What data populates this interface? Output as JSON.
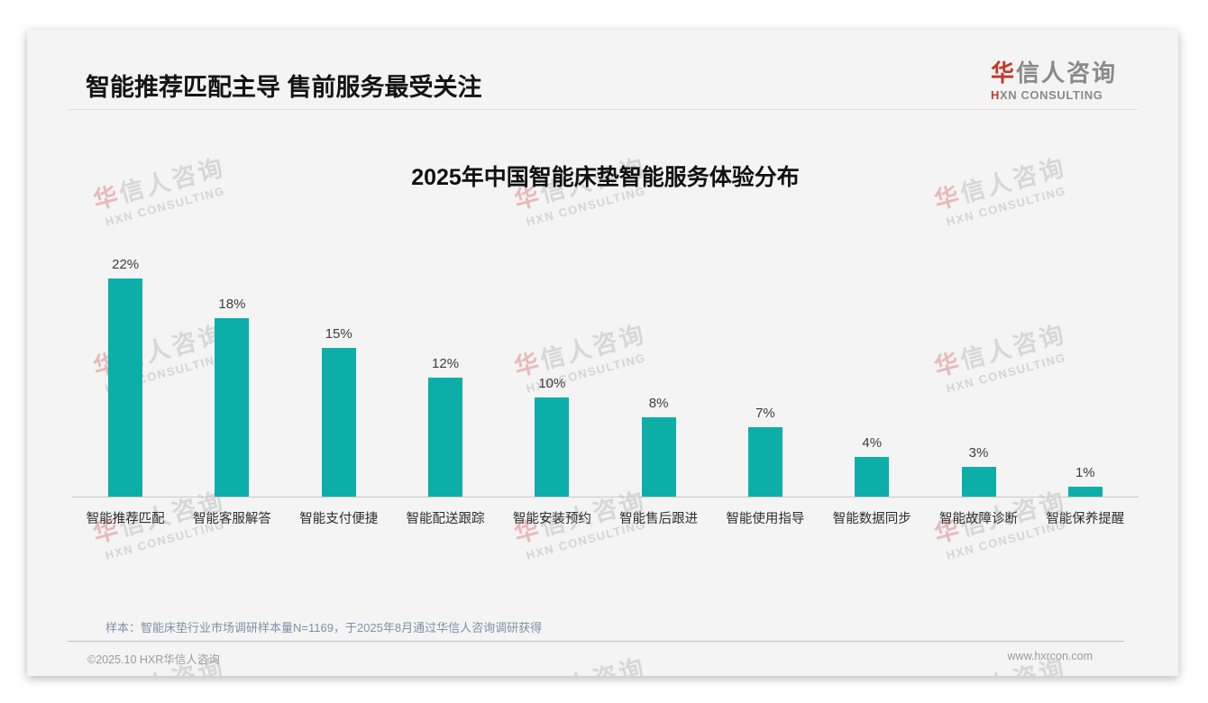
{
  "header": {
    "title": "智能推荐匹配主导 售前服务最受关注",
    "logo": {
      "cn_accent": "华",
      "cn_rest": "信人咨询",
      "en_accent": "H",
      "en_rest": "XN CONSULTING"
    }
  },
  "watermark": {
    "cn_accent": "华",
    "cn_rest": "信人咨询",
    "en": "HXN CONSULTING"
  },
  "chart_data": {
    "type": "bar",
    "title": "2025年中国智能床垫智能服务体验分布",
    "categories": [
      "智能推荐匹配",
      "智能客服解答",
      "智能支付便捷",
      "智能配送跟踪",
      "智能安装预约",
      "智能售后跟进",
      "智能使用指导",
      "智能数据同步",
      "智能故障诊断",
      "智能保养提醒"
    ],
    "values": [
      22,
      18,
      15,
      12,
      10,
      8,
      7,
      4,
      3,
      1
    ],
    "value_suffix": "%",
    "value_labels_position": "above",
    "bar_color": "#0bafa8",
    "ylim": [
      0,
      24
    ],
    "grid": false,
    "legend": false,
    "y_axis_visible": false
  },
  "footnote": "样本：智能床垫行业市场调研样本量N=1169，于2025年8月通过华信人咨询调研获得",
  "footer": {
    "left": "©2025.10 HXR华信人咨询",
    "right": "www.hxrcon.com"
  },
  "colors": {
    "logo_red": "#c0392b",
    "bar_teal": "#0bafa8",
    "footnote_blue_gray": "#7e91a5",
    "slide_background": "#f4f4f5"
  }
}
